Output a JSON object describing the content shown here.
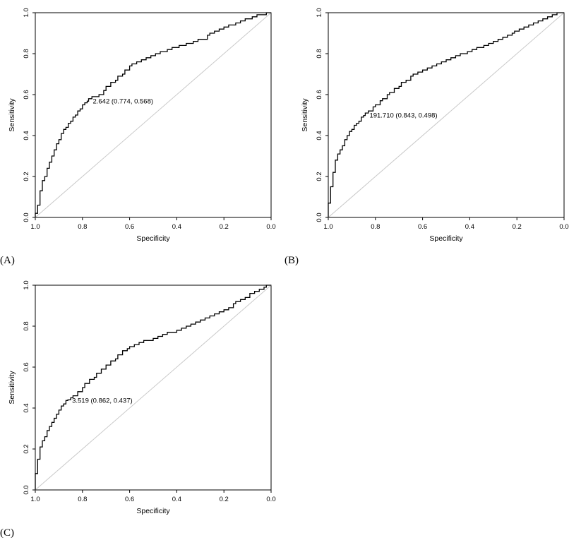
{
  "figure": {
    "background_color": "#ffffff",
    "curve_color": "#000000",
    "reference_line_color": "#c8c8c8",
    "axis_color": "#000000",
    "tick_text_color": "#000000"
  },
  "chart_data": [
    {
      "type": "line",
      "panel_label": "(A)",
      "xlabel": "Specificity",
      "ylabel": "Sensitivity",
      "x_ticks": [
        "1.0",
        "0.8",
        "0.6",
        "0.4",
        "0.2",
        "0.0"
      ],
      "y_ticks": [
        "0.0",
        "0.2",
        "0.4",
        "0.6",
        "0.8",
        "1.0"
      ],
      "x_range": [
        1.0,
        0.0
      ],
      "y_range": [
        0.0,
        1.0
      ],
      "x_axis_reversed": true,
      "grid": false,
      "reference_line": {
        "from": [
          1.0,
          0.0
        ],
        "to": [
          0.0,
          1.0
        ]
      },
      "annotation": {
        "text": "2.642 (0.774, 0.568)",
        "threshold": 2.642,
        "specificity": 0.774,
        "sensitivity": 0.568
      },
      "points": [
        [
          1.0,
          0.0
        ],
        [
          1.0,
          0.02
        ],
        [
          0.99,
          0.02
        ],
        [
          0.99,
          0.06
        ],
        [
          0.98,
          0.06
        ],
        [
          0.98,
          0.1
        ],
        [
          0.97,
          0.13
        ],
        [
          0.97,
          0.17
        ],
        [
          0.96,
          0.18
        ],
        [
          0.95,
          0.2
        ],
        [
          0.95,
          0.22
        ],
        [
          0.94,
          0.24
        ],
        [
          0.93,
          0.27
        ],
        [
          0.92,
          0.3
        ],
        [
          0.91,
          0.33
        ],
        [
          0.9,
          0.36
        ],
        [
          0.89,
          0.38
        ],
        [
          0.88,
          0.41
        ],
        [
          0.87,
          0.43
        ],
        [
          0.86,
          0.44
        ],
        [
          0.85,
          0.46
        ],
        [
          0.84,
          0.47
        ],
        [
          0.83,
          0.49
        ],
        [
          0.82,
          0.5
        ],
        [
          0.81,
          0.52
        ],
        [
          0.8,
          0.53
        ],
        [
          0.79,
          0.55
        ],
        [
          0.78,
          0.56
        ],
        [
          0.774,
          0.568
        ],
        [
          0.76,
          0.58
        ],
        [
          0.75,
          0.59
        ],
        [
          0.73,
          0.59
        ],
        [
          0.71,
          0.6
        ],
        [
          0.7,
          0.62
        ],
        [
          0.68,
          0.64
        ],
        [
          0.66,
          0.66
        ],
        [
          0.65,
          0.67
        ],
        [
          0.63,
          0.69
        ],
        [
          0.62,
          0.7
        ],
        [
          0.6,
          0.72
        ],
        [
          0.59,
          0.74
        ],
        [
          0.57,
          0.75
        ],
        [
          0.55,
          0.76
        ],
        [
          0.53,
          0.77
        ],
        [
          0.51,
          0.78
        ],
        [
          0.49,
          0.79
        ],
        [
          0.47,
          0.8
        ],
        [
          0.44,
          0.81
        ],
        [
          0.42,
          0.82
        ],
        [
          0.39,
          0.83
        ],
        [
          0.36,
          0.84
        ],
        [
          0.33,
          0.85
        ],
        [
          0.31,
          0.86
        ],
        [
          0.29,
          0.87
        ],
        [
          0.27,
          0.87
        ],
        [
          0.26,
          0.89
        ],
        [
          0.24,
          0.9
        ],
        [
          0.22,
          0.91
        ],
        [
          0.2,
          0.92
        ],
        [
          0.18,
          0.93
        ],
        [
          0.15,
          0.94
        ],
        [
          0.13,
          0.95
        ],
        [
          0.11,
          0.96
        ],
        [
          0.08,
          0.97
        ],
        [
          0.06,
          0.98
        ],
        [
          0.04,
          0.99
        ],
        [
          0.02,
          0.99
        ],
        [
          0.0,
          1.0
        ]
      ]
    },
    {
      "type": "line",
      "panel_label": "(B)",
      "xlabel": "Specificity",
      "ylabel": "Sensitivity",
      "x_ticks": [
        "1.0",
        "0.8",
        "0.6",
        "0.4",
        "0.2",
        "0.0"
      ],
      "y_ticks": [
        "0.0",
        "0.2",
        "0.4",
        "0.6",
        "0.8",
        "1.0"
      ],
      "x_range": [
        1.0,
        0.0
      ],
      "y_range": [
        0.0,
        1.0
      ],
      "x_axis_reversed": true,
      "grid": false,
      "reference_line": {
        "from": [
          1.0,
          0.0
        ],
        "to": [
          0.0,
          1.0
        ]
      },
      "annotation": {
        "text": "191.710 (0.843, 0.498)",
        "threshold": 191.71,
        "specificity": 0.843,
        "sensitivity": 0.498
      },
      "points": [
        [
          1.0,
          0.0
        ],
        [
          1.0,
          0.03
        ],
        [
          0.99,
          0.07
        ],
        [
          0.99,
          0.11
        ],
        [
          0.98,
          0.15
        ],
        [
          0.98,
          0.19
        ],
        [
          0.97,
          0.22
        ],
        [
          0.97,
          0.25
        ],
        [
          0.96,
          0.28
        ],
        [
          0.95,
          0.31
        ],
        [
          0.94,
          0.33
        ],
        [
          0.93,
          0.35
        ],
        [
          0.92,
          0.38
        ],
        [
          0.91,
          0.4
        ],
        [
          0.9,
          0.42
        ],
        [
          0.89,
          0.43
        ],
        [
          0.88,
          0.45
        ],
        [
          0.87,
          0.46
        ],
        [
          0.86,
          0.47
        ],
        [
          0.85,
          0.49
        ],
        [
          0.843,
          0.498
        ],
        [
          0.83,
          0.51
        ],
        [
          0.81,
          0.52
        ],
        [
          0.8,
          0.54
        ],
        [
          0.78,
          0.55
        ],
        [
          0.77,
          0.57
        ],
        [
          0.75,
          0.58
        ],
        [
          0.74,
          0.6
        ],
        [
          0.72,
          0.61
        ],
        [
          0.7,
          0.63
        ],
        [
          0.69,
          0.64
        ],
        [
          0.67,
          0.66
        ],
        [
          0.65,
          0.67
        ],
        [
          0.64,
          0.69
        ],
        [
          0.62,
          0.7
        ],
        [
          0.6,
          0.71
        ],
        [
          0.58,
          0.72
        ],
        [
          0.56,
          0.73
        ],
        [
          0.54,
          0.74
        ],
        [
          0.52,
          0.75
        ],
        [
          0.5,
          0.76
        ],
        [
          0.48,
          0.77
        ],
        [
          0.46,
          0.78
        ],
        [
          0.44,
          0.79
        ],
        [
          0.41,
          0.8
        ],
        [
          0.39,
          0.81
        ],
        [
          0.37,
          0.82
        ],
        [
          0.34,
          0.83
        ],
        [
          0.32,
          0.84
        ],
        [
          0.3,
          0.85
        ],
        [
          0.28,
          0.86
        ],
        [
          0.26,
          0.87
        ],
        [
          0.24,
          0.88
        ],
        [
          0.22,
          0.89
        ],
        [
          0.21,
          0.9
        ],
        [
          0.19,
          0.91
        ],
        [
          0.17,
          0.92
        ],
        [
          0.15,
          0.93
        ],
        [
          0.13,
          0.94
        ],
        [
          0.11,
          0.95
        ],
        [
          0.09,
          0.96
        ],
        [
          0.07,
          0.97
        ],
        [
          0.05,
          0.98
        ],
        [
          0.03,
          0.99
        ],
        [
          0.0,
          1.0
        ]
      ]
    },
    {
      "type": "line",
      "panel_label": "(C)",
      "xlabel": "Specificity",
      "ylabel": "Sensitivity",
      "x_ticks": [
        "1.0",
        "0.8",
        "0.6",
        "0.4",
        "0.2",
        "0.0"
      ],
      "y_ticks": [
        "0.0",
        "0.2",
        "0.4",
        "0.6",
        "0.8",
        "1.0"
      ],
      "x_range": [
        1.0,
        0.0
      ],
      "y_range": [
        0.0,
        1.0
      ],
      "x_axis_reversed": true,
      "grid": false,
      "reference_line": {
        "from": [
          1.0,
          0.0
        ],
        "to": [
          0.0,
          1.0
        ]
      },
      "annotation": {
        "text": "3.519 (0.862, 0.437)",
        "threshold": 3.519,
        "specificity": 0.862,
        "sensitivity": 0.437
      },
      "points": [
        [
          1.0,
          0.0
        ],
        [
          1.0,
          0.04
        ],
        [
          0.99,
          0.08
        ],
        [
          0.99,
          0.12
        ],
        [
          0.98,
          0.15
        ],
        [
          0.98,
          0.19
        ],
        [
          0.97,
          0.21
        ],
        [
          0.96,
          0.24
        ],
        [
          0.95,
          0.26
        ],
        [
          0.94,
          0.29
        ],
        [
          0.93,
          0.31
        ],
        [
          0.92,
          0.33
        ],
        [
          0.91,
          0.35
        ],
        [
          0.9,
          0.37
        ],
        [
          0.89,
          0.39
        ],
        [
          0.88,
          0.41
        ],
        [
          0.87,
          0.42
        ],
        [
          0.862,
          0.437
        ],
        [
          0.85,
          0.44
        ],
        [
          0.84,
          0.45
        ],
        [
          0.82,
          0.46
        ],
        [
          0.8,
          0.48
        ],
        [
          0.79,
          0.5
        ],
        [
          0.77,
          0.52
        ],
        [
          0.75,
          0.54
        ],
        [
          0.74,
          0.55
        ],
        [
          0.72,
          0.57
        ],
        [
          0.7,
          0.59
        ],
        [
          0.68,
          0.61
        ],
        [
          0.66,
          0.63
        ],
        [
          0.65,
          0.64
        ],
        [
          0.63,
          0.66
        ],
        [
          0.61,
          0.68
        ],
        [
          0.6,
          0.69
        ],
        [
          0.58,
          0.7
        ],
        [
          0.56,
          0.71
        ],
        [
          0.54,
          0.72
        ],
        [
          0.52,
          0.73
        ],
        [
          0.5,
          0.73
        ],
        [
          0.48,
          0.74
        ],
        [
          0.46,
          0.75
        ],
        [
          0.44,
          0.76
        ],
        [
          0.42,
          0.77
        ],
        [
          0.4,
          0.77
        ],
        [
          0.38,
          0.78
        ],
        [
          0.36,
          0.79
        ],
        [
          0.34,
          0.8
        ],
        [
          0.32,
          0.81
        ],
        [
          0.3,
          0.82
        ],
        [
          0.28,
          0.83
        ],
        [
          0.26,
          0.84
        ],
        [
          0.24,
          0.85
        ],
        [
          0.22,
          0.86
        ],
        [
          0.2,
          0.87
        ],
        [
          0.18,
          0.88
        ],
        [
          0.16,
          0.89
        ],
        [
          0.15,
          0.91
        ],
        [
          0.13,
          0.92
        ],
        [
          0.11,
          0.93
        ],
        [
          0.09,
          0.94
        ],
        [
          0.07,
          0.96
        ],
        [
          0.05,
          0.97
        ],
        [
          0.03,
          0.98
        ],
        [
          0.02,
          0.99
        ],
        [
          0.0,
          1.0
        ]
      ]
    }
  ]
}
